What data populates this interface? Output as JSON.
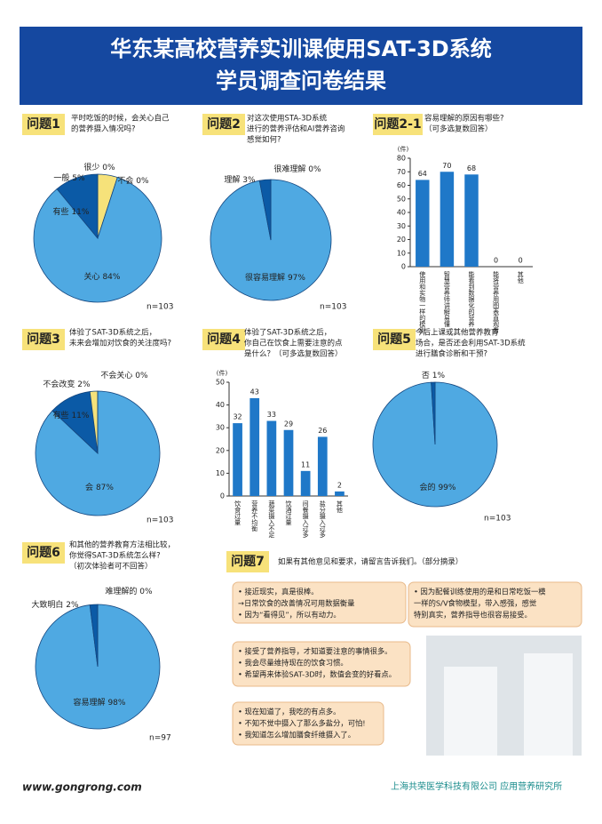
{
  "header": {
    "title": [
      "华东某高校营养实训课使用SAT-3D系统",
      "学员调查问卷结果"
    ]
  },
  "chart_data": [
    {
      "type": "pie",
      "title": "问题1",
      "subtitle": [
        "平时吃饭的时候，会关心自己",
        "的营养摄入情况吗?"
      ],
      "categories": [
        "一般",
        "关心",
        "有些",
        "很少",
        "不会"
      ],
      "values": [
        5,
        84,
        11,
        0,
        0
      ],
      "value_labels": [
        "5%",
        "84%",
        "11%",
        "0%",
        "0%"
      ],
      "colors": [
        "#f6e27a",
        "#4fa9e2",
        "#0b5aa6",
        "#0b5aa6",
        "#0b5aa6"
      ],
      "note": "n=103"
    },
    {
      "type": "pie",
      "title": "问题2",
      "subtitle": [
        "对这次使用STA-3D系统",
        "进行的营养评估和AI营养咨询",
        "感觉如何?"
      ],
      "categories": [
        "很容易理解",
        "理解",
        "很难理解"
      ],
      "values": [
        97,
        3,
        0
      ],
      "value_labels": [
        "97%",
        "3%",
        "0%"
      ],
      "colors": [
        "#4fa9e2",
        "#0b5aa6",
        "#f6e27a"
      ],
      "note": "n=103"
    },
    {
      "type": "bar",
      "title": "问题2-1",
      "subtitle": [
        "容易理解的原因有哪些?",
        "（可多选复数回答）"
      ],
      "categories": [
        "使用和实物一样的模型",
        "智慧营养师讲解易懂",
        "能看到数据化的营养",
        "能将营养用图表直观看",
        "其他"
      ],
      "values": [
        64,
        70,
        68,
        0,
        0
      ],
      "color": "#1f78c8",
      "ylabel": "(件)",
      "ylim": [
        0,
        80
      ],
      "yticks": [
        0,
        10,
        20,
        30,
        40,
        50,
        60,
        70,
        80
      ]
    },
    {
      "type": "pie",
      "title": "问题3",
      "subtitle": [
        "体验了SAT-3D系统之后，",
        "未来会增加对饮食的关注度吗?"
      ],
      "categories": [
        "会",
        "有些",
        "不会改变",
        "不会关心"
      ],
      "values": [
        87,
        11,
        2,
        0
      ],
      "value_labels": [
        "87%",
        "11%",
        "2%",
        "0%"
      ],
      "colors": [
        "#4fa9e2",
        "#0b5aa6",
        "#f6e27a",
        "#0b5aa6"
      ],
      "note": "n=103"
    },
    {
      "type": "bar",
      "title": "问题4",
      "subtitle": [
        "体验了SAT-3D系统之后，",
        "你自己在饮食上需要注意的点",
        "是什么？（可多选复数回答）"
      ],
      "categories": [
        "饮食过量",
        "营养不均衡",
        "蔬菜摄入不足",
        "饮酒过量",
        "间餐摄入过多",
        "盐分摄入过多",
        "其他"
      ],
      "values": [
        32,
        43,
        33,
        29,
        11,
        26,
        2
      ],
      "color": "#1f78c8",
      "ylabel": "(件)",
      "ylim": [
        0,
        50
      ],
      "yticks": [
        0,
        10,
        20,
        30,
        40,
        50
      ]
    },
    {
      "type": "pie",
      "title": "问题5",
      "subtitle": [
        "今后上课或其他营养教育",
        "场合，是否还会利用SAT-3D系统",
        "进行膳食诊断和干预?"
      ],
      "categories": [
        "会的",
        "否"
      ],
      "values": [
        99,
        1
      ],
      "value_labels": [
        "99%",
        "1%"
      ],
      "colors": [
        "#4fa9e2",
        "#0b5aa6"
      ],
      "note": "n=103"
    },
    {
      "type": "pie",
      "title": "问题6",
      "subtitle": [
        "和其他的营养教育方法相比较，",
        "你觉得SAT-3D系统怎么样?",
        "（初次体验者可不回答）"
      ],
      "categories": [
        "容易理解",
        "大致明白",
        "难理解的"
      ],
      "values": [
        98,
        2,
        0
      ],
      "value_labels": [
        "98%",
        "2%",
        "0%"
      ],
      "colors": [
        "#4fa9e2",
        "#0b5aa6",
        "#f6e27a"
      ],
      "note": "n=97"
    }
  ],
  "question7": {
    "title": "问题7",
    "text": "如果有其他意见和要求，请留言告诉我们。（部分摘录）",
    "comments": [
      [
        "• 接近现实，真是很棒。",
        "→日常饮食的改善情况可用数据衡量",
        "• 因为“看得见”，所以有动力。"
      ],
      [
        "• 因为配餐训练使用的是和日常吃饭一模",
        "一样的S/V食物模型，带入感强，感觉",
        "特别真实，营养指导也很容易接受。"
      ],
      [
        "• 接受了营养指导，才知道要注意的事情很多。",
        "• 我会尽量维持现在的饮食习惯。",
        "• 希望再来体验SAT-3D时，数值会变的好看点。"
      ],
      [
        "• 现在知道了，我吃的有点多。",
        "• 不知不觉中摄入了那么多盐分，可怕!",
        "• 我知道怎么增加膳食纤维摄入了。"
      ]
    ]
  },
  "footer": {
    "site": "www.gongrong.com",
    "company": "上海共荣医学科技有限公司 应用营养研究所"
  }
}
